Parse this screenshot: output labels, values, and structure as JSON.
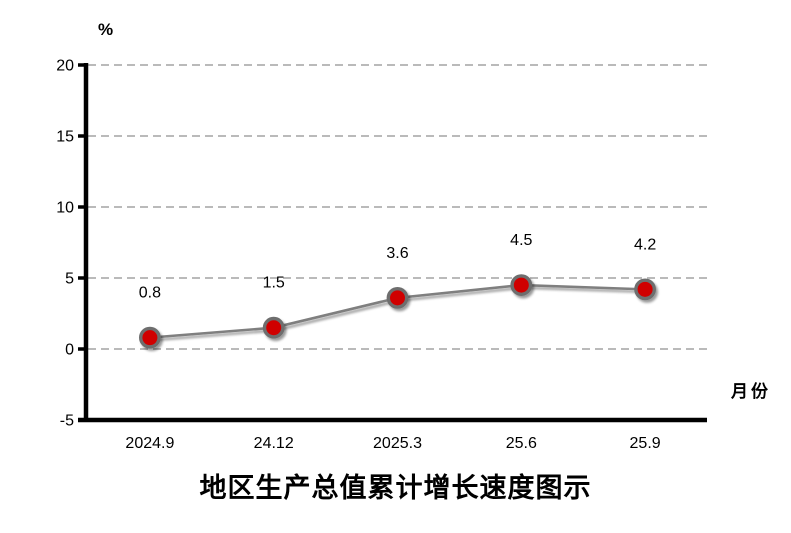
{
  "labels": {
    "percent": "%",
    "month": "月份",
    "title": "地区生产总值累计增长速度图示"
  },
  "chart_data": {
    "type": "line",
    "categories": [
      "2024.9",
      "24.12",
      "2025.3",
      "25.6",
      "25.9"
    ],
    "values": [
      0.8,
      1.5,
      3.6,
      4.5,
      4.2
    ],
    "title": "地区生产总值累计增长速度图示",
    "xlabel": "月份",
    "ylabel": "%",
    "ylim": [
      -5,
      20
    ],
    "yticks": [
      -5,
      0,
      5,
      10,
      15,
      20
    ],
    "grid": true,
    "legend": "none",
    "colors": {
      "marker_fill": "#d00000",
      "marker_stroke": "#6e6e6e",
      "line": "#7f7f7f",
      "grid": "#a3a3a3",
      "axis": "#000000",
      "text": "#000000"
    }
  }
}
